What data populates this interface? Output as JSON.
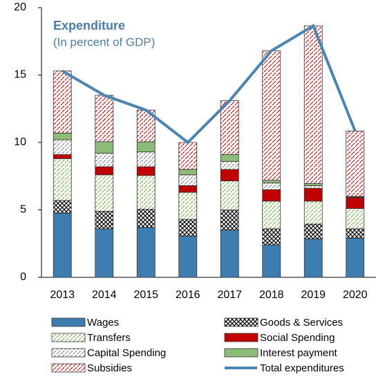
{
  "chart_data": {
    "type": "bar",
    "stacked": true,
    "title": "Expenditure",
    "subtitle": "(In percent of GDP)",
    "categories": [
      "2013",
      "2014",
      "2015",
      "2016",
      "2017",
      "2018",
      "2019",
      "2020"
    ],
    "ylim": [
      0,
      20
    ],
    "yticks": [
      0,
      5,
      10,
      15,
      20
    ],
    "legend": "bottom",
    "series": [
      {
        "name": "Wages",
        "color": "#3d7db0",
        "pattern": "solid",
        "values": [
          4.75,
          3.6,
          3.7,
          3.05,
          3.5,
          2.4,
          2.85,
          2.9
        ]
      },
      {
        "name": "Goods & Services",
        "color": "#000000",
        "pattern": "crosshatch",
        "values": [
          0.95,
          1.3,
          1.35,
          1.25,
          1.5,
          1.2,
          1.1,
          0.7
        ]
      },
      {
        "name": "Transfers",
        "color": "#70ad47",
        "pattern": "dashed-hatch",
        "values": [
          3.1,
          2.7,
          2.5,
          2.0,
          2.15,
          2.05,
          1.7,
          1.5
        ]
      },
      {
        "name": "Social Spending",
        "color": "#c00000",
        "pattern": "solid",
        "values": [
          0.3,
          0.6,
          0.65,
          0.5,
          0.85,
          0.85,
          0.95,
          0.8
        ]
      },
      {
        "name": "Capital Spending",
        "color": "#808080",
        "pattern": "dashed-hatch",
        "values": [
          1.1,
          1.0,
          1.1,
          0.8,
          0.6,
          0.5,
          0.2,
          0.05
        ]
      },
      {
        "name": "Interest payment",
        "color": "#8dbb78",
        "pattern": "solid",
        "values": [
          0.5,
          0.85,
          0.75,
          0.4,
          0.5,
          0.2,
          0.15,
          0.05
        ]
      },
      {
        "name": "Subsidies",
        "color": "#c00000",
        "pattern": "dashed-hatch",
        "values": [
          4.6,
          3.45,
          2.35,
          2.0,
          4.0,
          9.6,
          11.7,
          4.85
        ]
      },
      {
        "name": "Total expenditures",
        "color": "#4a84b3",
        "type": "line",
        "values": [
          15.3,
          13.5,
          12.4,
          10.0,
          13.1,
          16.8,
          18.65,
          10.85
        ]
      }
    ]
  }
}
